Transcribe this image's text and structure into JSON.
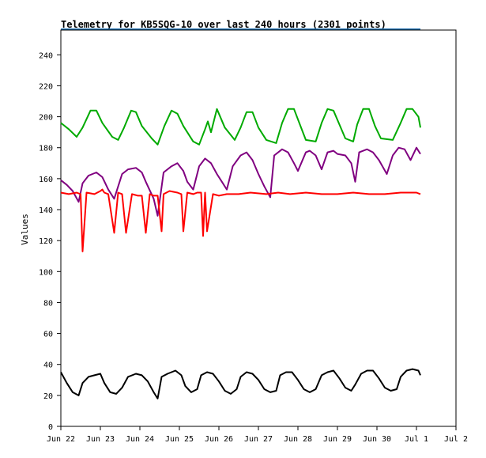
{
  "chart_data": {
    "type": "line",
    "title": "Telemetry for KB5SQG-10 over last 240 hours (2301 points)",
    "xlabel": "",
    "ylabel": "Values",
    "ylim": [
      0,
      256
    ],
    "yticks": [
      0,
      20,
      40,
      60,
      80,
      100,
      120,
      140,
      160,
      180,
      200,
      220,
      240
    ],
    "xlim": [
      0,
      10
    ],
    "xticks": [
      {
        "v": 0,
        "label": "Jun 22"
      },
      {
        "v": 1,
        "label": "Jun 23"
      },
      {
        "v": 2,
        "label": "Jun 24"
      },
      {
        "v": 3,
        "label": "Jun 25"
      },
      {
        "v": 4,
        "label": "Jun 26"
      },
      {
        "v": 5,
        "label": "Jun 27"
      },
      {
        "v": 6,
        "label": "Jun 28"
      },
      {
        "v": 7,
        "label": "Jun 29"
      },
      {
        "v": 8,
        "label": "Jun 30"
      },
      {
        "v": 9,
        "label": "Jul 1"
      },
      {
        "v": 10,
        "label": "Jul 2"
      }
    ],
    "grid": false,
    "legend": "none",
    "series": [
      {
        "color": "#00aa00",
        "x": [
          0.0,
          0.2,
          0.4,
          0.55,
          0.75,
          0.9,
          1.05,
          1.3,
          1.45,
          1.6,
          1.78,
          1.9,
          2.05,
          2.3,
          2.45,
          2.62,
          2.8,
          2.95,
          3.1,
          3.35,
          3.5,
          3.65,
          3.72,
          3.8,
          3.95,
          4.15,
          4.4,
          4.55,
          4.7,
          4.85,
          5.0,
          5.2,
          5.45,
          5.6,
          5.75,
          5.9,
          6.05,
          6.2,
          6.45,
          6.6,
          6.75,
          6.9,
          7.05,
          7.2,
          7.4,
          7.5,
          7.65,
          7.8,
          7.95,
          8.1,
          8.4,
          8.6,
          8.75,
          8.9,
          9.05,
          9.1
        ],
        "values": [
          196,
          192,
          187,
          193,
          204,
          204,
          196,
          187,
          185,
          193,
          204,
          203,
          194,
          186,
          182,
          194,
          204,
          202,
          194,
          184,
          182,
          192,
          197,
          190,
          205,
          193,
          185,
          193,
          203,
          203,
          193,
          185,
          183,
          196,
          205,
          205,
          195,
          185,
          184,
          196,
          205,
          204,
          195,
          186,
          184,
          195,
          205,
          205,
          194,
          186,
          185,
          196,
          205,
          205,
          200,
          193
        ]
      },
      {
        "color": "#800080",
        "x": [
          0.0,
          0.15,
          0.3,
          0.45,
          0.55,
          0.7,
          0.9,
          1.05,
          1.2,
          1.35,
          1.45,
          1.55,
          1.7,
          1.9,
          2.05,
          2.15,
          2.35,
          2.45,
          2.6,
          2.8,
          2.95,
          3.1,
          3.2,
          3.35,
          3.5,
          3.65,
          3.8,
          3.95,
          4.1,
          4.2,
          4.35,
          4.55,
          4.7,
          4.85,
          5.0,
          5.15,
          5.3,
          5.4,
          5.6,
          5.75,
          5.9,
          6.0,
          6.2,
          6.3,
          6.45,
          6.6,
          6.75,
          6.9,
          7.0,
          7.2,
          7.35,
          7.45,
          7.55,
          7.75,
          7.9,
          8.05,
          8.25,
          8.4,
          8.55,
          8.7,
          8.85,
          9.0,
          9.1
        ],
        "values": [
          159,
          156,
          152,
          145,
          157,
          162,
          164,
          161,
          153,
          147,
          155,
          163,
          166,
          167,
          164,
          158,
          147,
          136,
          164,
          168,
          170,
          165,
          158,
          153,
          168,
          173,
          170,
          163,
          157,
          153,
          168,
          175,
          177,
          172,
          163,
          155,
          148,
          175,
          179,
          177,
          170,
          165,
          177,
          178,
          175,
          166,
          177,
          178,
          176,
          175,
          170,
          158,
          177,
          179,
          177,
          172,
          163,
          175,
          180,
          179,
          172,
          180,
          176
        ]
      },
      {
        "color": "#ff0000",
        "x": [
          0.0,
          0.2,
          0.4,
          0.5,
          0.55,
          0.65,
          0.85,
          1.0,
          1.05,
          1.1,
          1.2,
          1.35,
          1.45,
          1.55,
          1.65,
          1.8,
          1.95,
          2.05,
          2.15,
          2.25,
          2.35,
          2.45,
          2.55,
          2.6,
          2.75,
          2.95,
          3.05,
          3.1,
          3.2,
          3.35,
          3.45,
          3.55,
          3.6,
          3.65,
          3.7,
          3.85,
          4.0,
          4.2,
          4.5,
          4.8,
          5.2,
          5.5,
          5.8,
          6.2,
          6.6,
          7.0,
          7.4,
          7.8,
          8.2,
          8.6,
          9.0,
          9.1
        ],
        "values": [
          151,
          150,
          151,
          150,
          113,
          151,
          150,
          152,
          153,
          151,
          150,
          125,
          151,
          150,
          125,
          150,
          149,
          149,
          125,
          150,
          149,
          149,
          126,
          150,
          152,
          151,
          150,
          126,
          151,
          150,
          151,
          151,
          123,
          151,
          126,
          150,
          149,
          150,
          150,
          151,
          150,
          151,
          150,
          151,
          150,
          150,
          151,
          150,
          150,
          151,
          151,
          150
        ]
      },
      {
        "color": "#000000",
        "x": [
          0.0,
          0.15,
          0.3,
          0.45,
          0.55,
          0.7,
          0.85,
          1.0,
          1.1,
          1.25,
          1.4,
          1.55,
          1.7,
          1.9,
          2.05,
          2.2,
          2.35,
          2.45,
          2.55,
          2.7,
          2.9,
          3.05,
          3.15,
          3.3,
          3.45,
          3.55,
          3.7,
          3.85,
          4.0,
          4.15,
          4.3,
          4.45,
          4.55,
          4.7,
          4.85,
          5.0,
          5.15,
          5.3,
          5.45,
          5.55,
          5.7,
          5.85,
          6.0,
          6.15,
          6.3,
          6.45,
          6.6,
          6.75,
          6.9,
          7.05,
          7.2,
          7.35,
          7.45,
          7.6,
          7.75,
          7.9,
          8.05,
          8.2,
          8.35,
          8.5,
          8.6,
          8.75,
          8.9,
          9.05,
          9.1
        ],
        "values": [
          35,
          28,
          22,
          20,
          28,
          32,
          33,
          34,
          28,
          22,
          21,
          25,
          32,
          34,
          33,
          29,
          22,
          18,
          32,
          34,
          36,
          33,
          26,
          22,
          24,
          33,
          35,
          34,
          29,
          23,
          21,
          24,
          32,
          35,
          34,
          30,
          24,
          22,
          23,
          33,
          35,
          35,
          30,
          24,
          22,
          24,
          33,
          35,
          36,
          31,
          25,
          23,
          27,
          34,
          36,
          36,
          31,
          25,
          23,
          24,
          32,
          36,
          37,
          36,
          33
        ]
      }
    ]
  }
}
